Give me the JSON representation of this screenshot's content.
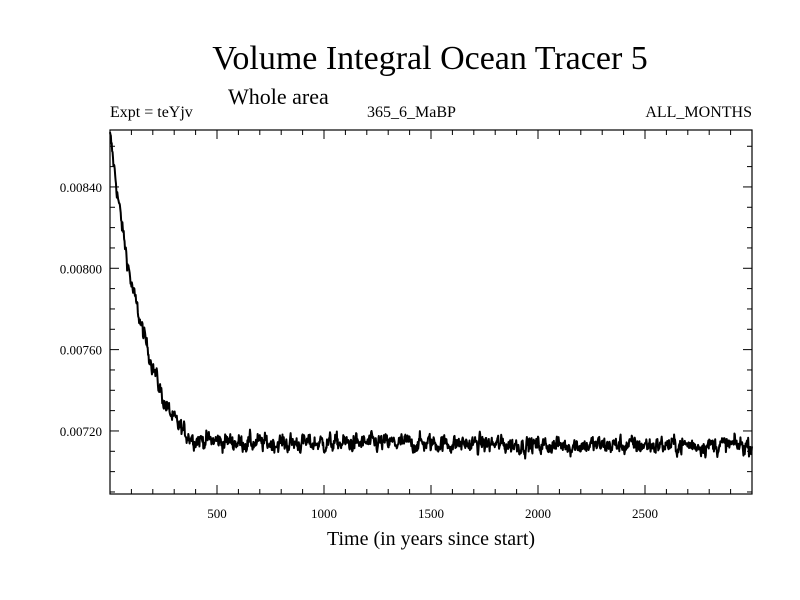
{
  "chart_data": {
    "type": "line",
    "title": "Volume Integral Ocean Tracer 5",
    "subtitle": "Whole area",
    "experiment_label": "Expt = teYjv",
    "run_label": "365_6_MaBP",
    "months_label": "ALL_MONTHS",
    "xlabel": "Time (in years since start)",
    "ylabel": "",
    "xlim": [
      0,
      3000
    ],
    "ylim": [
      0.00689,
      0.00868
    ],
    "x_ticks": [
      {
        "value": 500,
        "label": "500"
      },
      {
        "value": 1000,
        "label": "1000"
      },
      {
        "value": 1500,
        "label": "1500"
      },
      {
        "value": 2000,
        "label": "2000"
      },
      {
        "value": 2500,
        "label": "2500"
      }
    ],
    "y_ticks": [
      {
        "value": 0.0072,
        "label": "0.00720"
      },
      {
        "value": 0.0076,
        "label": "0.00760"
      },
      {
        "value": 0.008,
        "label": "0.00800"
      },
      {
        "value": 0.0084,
        "label": "0.00840"
      }
    ],
    "series": [
      {
        "name": "Volume Integral Ocean Tracer 5",
        "x": [
          0,
          25,
          50,
          75,
          100,
          150,
          200,
          250,
          300,
          350,
          400,
          500,
          700,
          1000,
          1500,
          2000,
          2500,
          3000
        ],
        "values": [
          0.00865,
          0.00845,
          0.00825,
          0.00808,
          0.00792,
          0.0077,
          0.00752,
          0.00735,
          0.00725,
          0.00719,
          0.00716,
          0.00715,
          0.00714,
          0.00714,
          0.00714,
          0.00713,
          0.00713,
          0.00713
        ],
        "noise_amplitude": 7e-05
      }
    ]
  }
}
